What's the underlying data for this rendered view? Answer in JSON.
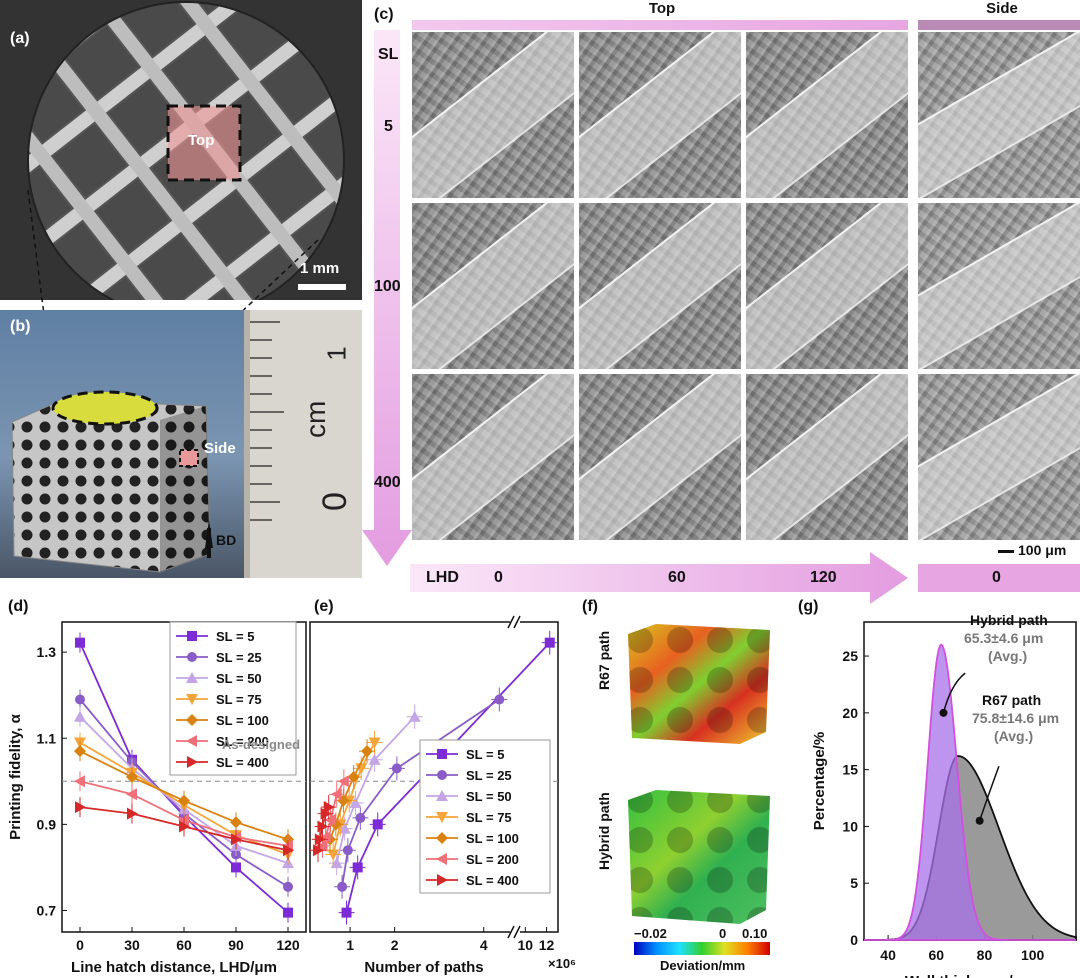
{
  "panel_a": {
    "label": "(a)",
    "top_label": "Top",
    "scale_label": "1 mm"
  },
  "panel_b": {
    "label": "(b)",
    "side_label": "Side",
    "bd_label": "BD",
    "ruler_one": "1",
    "ruler_zero": "0",
    "ruler_unit": "cm"
  },
  "panel_c": {
    "label": "(c)",
    "top_header": "Top",
    "side_header": "Side",
    "sl_label": "SL",
    "sl_values": [
      "5",
      "100",
      "400"
    ],
    "lhd_label": "LHD",
    "lhd_values": [
      "0",
      "60",
      "120"
    ],
    "side_lhd": "0",
    "scale_label": "100 μm"
  },
  "panel_d": {
    "label": "(d)",
    "as_designed": "As-designed"
  },
  "panel_e": {
    "label": "(e)",
    "exp_label": "×10⁶"
  },
  "panel_f": {
    "label": "(f)",
    "r67": "R67 path",
    "hybrid": "Hybrid path",
    "cbar_min": "−0.02",
    "cbar_mid": "0",
    "cbar_max": "0.10",
    "cbar_title": "Deviation/mm"
  },
  "panel_g": {
    "label": "(g)",
    "hybrid_title": "Hybrid path",
    "hybrid_value": "65.3±4.6 μm",
    "hybrid_avg": "(Avg.)",
    "r67_title": "R67 path",
    "r67_value": "75.8±14.6 μm",
    "r67_avg": "(Avg.)"
  },
  "chart_data": [
    {
      "type": "line",
      "title": "",
      "xlabel": "Line hatch distance, LHD/μm",
      "ylabel": "Printing fidelity, α",
      "x": [
        0,
        30,
        60,
        90,
        120
      ],
      "xticks": [
        "0",
        "30",
        "60",
        "90",
        "120"
      ],
      "ylim": [
        0.65,
        1.37
      ],
      "yticks": [
        "0.7",
        "0.9",
        "1.1",
        "1.3"
      ],
      "reference_line": 1.0,
      "series": [
        {
          "name": "SL = 5",
          "color": "#7d2bd6",
          "marker": "square",
          "values": [
            1.322,
            1.05,
            0.92,
            0.8,
            0.695
          ]
        },
        {
          "name": "SL = 25",
          "color": "#8a5cc7",
          "marker": "circle",
          "values": [
            1.19,
            1.045,
            0.925,
            0.83,
            0.755
          ]
        },
        {
          "name": "SL = 50",
          "color": "#c4a6e6",
          "marker": "triangle-up",
          "values": [
            1.15,
            1.03,
            0.935,
            0.85,
            0.81
          ]
        },
        {
          "name": "SL = 75",
          "color": "#f5a53a",
          "marker": "triangle-down",
          "values": [
            1.09,
            1.02,
            0.945,
            0.875,
            0.83
          ]
        },
        {
          "name": "SL = 100",
          "color": "#d9820f",
          "marker": "diamond",
          "values": [
            1.07,
            1.01,
            0.955,
            0.905,
            0.865
          ]
        },
        {
          "name": "SL = 200",
          "color": "#f0707a",
          "marker": "triangle-left",
          "values": [
            1.0,
            0.97,
            0.91,
            0.87,
            0.85
          ]
        },
        {
          "name": "SL = 400",
          "color": "#d62828",
          "marker": "triangle-right",
          "values": [
            0.94,
            0.925,
            0.895,
            0.865,
            0.84
          ]
        }
      ]
    },
    {
      "type": "line",
      "title": "",
      "xlabel": "Number of paths",
      "ylabel": "",
      "xticks": [
        "1",
        "2",
        "4",
        "10",
        "12"
      ],
      "ylim": [
        0.65,
        1.37
      ],
      "reference_line": 1.0,
      "series": [
        {
          "name": "SL = 5",
          "color": "#7d2bd6",
          "marker": "square",
          "x": [
            0.92,
            1.17,
            1.62,
            3.0,
            12.3
          ],
          "values": [
            0.695,
            0.8,
            0.9,
            1.05,
            1.322
          ]
        },
        {
          "name": "SL = 25",
          "color": "#8a5cc7",
          "marker": "circle",
          "x": [
            0.82,
            0.95,
            1.23,
            2.05,
            4.35
          ],
          "values": [
            0.755,
            0.84,
            0.915,
            1.03,
            1.19
          ]
        },
        {
          "name": "SL = 50",
          "color": "#c4a6e6",
          "marker": "triangle-up",
          "x": [
            0.7,
            0.88,
            1.12,
            1.55,
            2.45
          ],
          "values": [
            0.81,
            0.89,
            0.95,
            1.05,
            1.15
          ]
        },
        {
          "name": "SL = 75",
          "color": "#f5a53a",
          "marker": "triangle-down",
          "x": [
            0.62,
            0.78,
            0.98,
            1.25,
            1.55
          ],
          "values": [
            0.83,
            0.9,
            0.955,
            1.03,
            1.09
          ]
        },
        {
          "name": "SL = 100",
          "color": "#d9820f",
          "marker": "diamond",
          "x": [
            0.55,
            0.68,
            0.85,
            1.08,
            1.38
          ],
          "values": [
            0.865,
            0.9,
            0.955,
            1.01,
            1.07
          ]
        },
        {
          "name": "SL = 200",
          "color": "#f0707a",
          "marker": "triangle-left",
          "x": [
            0.38,
            0.45,
            0.56,
            0.7,
            0.86
          ],
          "values": [
            0.85,
            0.87,
            0.91,
            0.97,
            1.0
          ]
        },
        {
          "name": "SL = 400",
          "color": "#d62828",
          "marker": "triangle-right",
          "x": [
            0.28,
            0.32,
            0.38,
            0.45,
            0.52
          ],
          "values": [
            0.84,
            0.865,
            0.895,
            0.925,
            0.94
          ]
        }
      ]
    },
    {
      "type": "area",
      "title": "",
      "xlabel": "Wall thickness/μm",
      "ylabel": "Percentage/%",
      "xlim": [
        30,
        118
      ],
      "ylim": [
        0,
        28
      ],
      "xticks": [
        "40",
        "60",
        "80",
        "100"
      ],
      "yticks": [
        "0",
        "5",
        "10",
        "15",
        "20",
        "25"
      ],
      "series": [
        {
          "name": "Hybrid path",
          "color": "#a872e8",
          "peak_x": 62,
          "peak_y": 26,
          "mean": 65.3,
          "sd": 4.6
        },
        {
          "name": "R67 path",
          "color": "#777777",
          "peak_x": 69,
          "peak_y": 16.2,
          "mean": 75.8,
          "sd": 14.6
        }
      ]
    }
  ]
}
